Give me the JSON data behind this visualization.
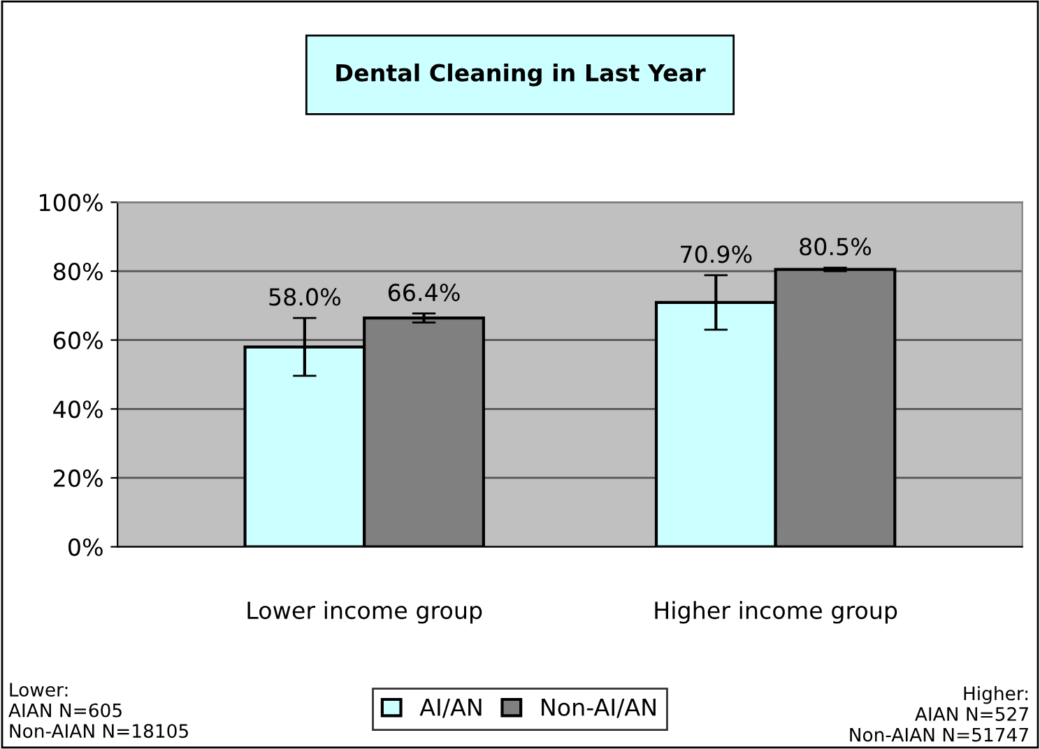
{
  "chart_data": {
    "type": "bar",
    "title": "Dental Cleaning in Last Year",
    "categories": [
      "Lower income group",
      "Higher income group"
    ],
    "series": [
      {
        "name": "AI/AN",
        "color": "#ccffff",
        "values": [
          58.0,
          70.9
        ],
        "errors": [
          8.4,
          7.9
        ],
        "value_labels": [
          "58.0%",
          "70.9%"
        ]
      },
      {
        "name": "Non-AI/AN",
        "color": "#808080",
        "values": [
          66.4,
          80.5
        ],
        "errors": [
          1.3,
          0.5
        ],
        "value_labels": [
          "66.4%",
          "80.5%"
        ]
      }
    ],
    "ylim": [
      0,
      100
    ],
    "yticks": [
      {
        "value": 0,
        "label": "0%"
      },
      {
        "value": 20,
        "label": "20%"
      },
      {
        "value": 40,
        "label": "40%"
      },
      {
        "value": 60,
        "label": "60%"
      },
      {
        "value": 80,
        "label": "80%"
      },
      {
        "value": 100,
        "label": "100%"
      }
    ],
    "grid": "y",
    "legend": "bottom",
    "annotations": [
      "Lower:\nAIAN N=605\nNon-AIAN N=18105",
      "Higher:\nAIAN N=527\nNon-AIAN N=51747"
    ]
  }
}
